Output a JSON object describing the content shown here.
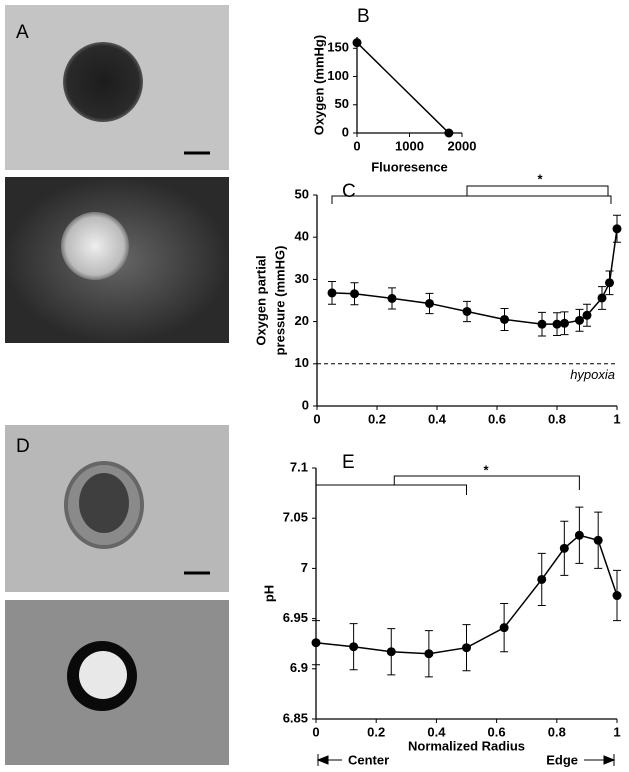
{
  "panel_labels": [
    "A",
    "B",
    "C",
    "D",
    "E"
  ],
  "chart_data": [
    {
      "type": "line",
      "xlabel": "Fluoresence",
      "ylabel": [
        "Oxygen (mmHg)"
      ],
      "x": [
        0,
        1750
      ],
      "values": [
        160,
        0
      ],
      "color": "#000000",
      "xlim": [
        0,
        2000
      ],
      "ylim": [
        0,
        170
      ],
      "xticks": [
        0,
        1000,
        2000
      ],
      "yticks": [
        0,
        50,
        100,
        150
      ]
    },
    {
      "type": "line",
      "xlabel": null,
      "ylabel": [
        "Oxygen partial",
        "pressure (mmHG)"
      ],
      "x": [
        0.05,
        0.125,
        0.25,
        0.375,
        0.5,
        0.625,
        0.75,
        0.8,
        0.825,
        0.875,
        0.9,
        0.95,
        0.975,
        1.0
      ],
      "values": [
        26.8,
        26.6,
        25.5,
        24.3,
        22.4,
        20.5,
        19.4,
        19.4,
        19.6,
        20.3,
        21.5,
        25.6,
        29.2,
        42.0
      ],
      "errors": [
        2.7,
        2.6,
        2.5,
        2.4,
        2.4,
        2.6,
        2.8,
        2.7,
        2.7,
        2.6,
        2.6,
        2.7,
        2.8,
        3.2
      ],
      "color": "#000000",
      "xlim": [
        0,
        1
      ],
      "ylim": [
        0,
        50
      ],
      "xticks": [
        0,
        0.2,
        0.4,
        0.6,
        0.8,
        1
      ],
      "yticks": [
        0,
        10,
        20,
        30,
        40,
        50
      ],
      "reference_line": {
        "value": 10,
        "label": "hypoxia"
      },
      "significance_label": "*"
    },
    {
      "type": "line",
      "xlabel": "Normalized Radius",
      "ylabel": [
        "pH"
      ],
      "x": [
        0,
        0.125,
        0.25,
        0.375,
        0.5,
        0.625,
        0.75,
        0.825,
        0.875,
        0.9375,
        1.0
      ],
      "values": [
        6.926,
        6.922,
        6.917,
        6.915,
        6.921,
        6.941,
        6.989,
        7.02,
        7.033,
        7.028,
        6.973
      ],
      "errors": [
        0.022,
        0.023,
        0.023,
        0.023,
        0.023,
        0.024,
        0.026,
        0.027,
        0.028,
        0.028,
        0.025
      ],
      "color": "#000000",
      "xlim": [
        0,
        1
      ],
      "ylim": [
        6.85,
        7.1
      ],
      "xticks": [
        0,
        0.2,
        0.4,
        0.6,
        0.8,
        1
      ],
      "yticks": [
        6.85,
        6.9,
        6.95,
        7,
        7.05,
        7.1
      ],
      "significance_label": "*",
      "annotations": [
        "Center",
        "Edge"
      ]
    }
  ]
}
